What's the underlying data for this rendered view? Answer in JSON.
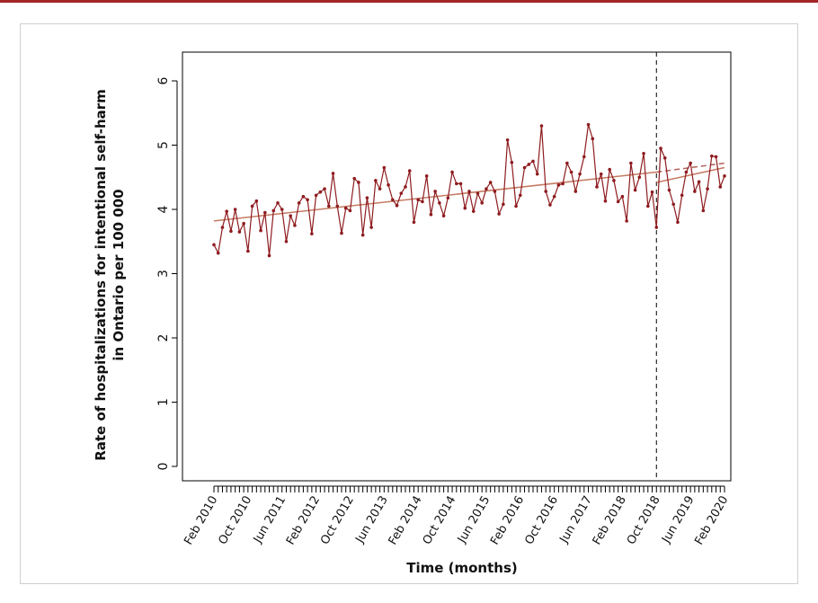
{
  "chart_data": {
    "type": "line",
    "y_label": [
      "Rate of hospitalizations for intentional self-harm",
      "in Ontario per 100 000"
    ],
    "x_label": "Time (months)",
    "categories": [
      "Feb 2010",
      null,
      null,
      null,
      null,
      null,
      null,
      null,
      "Oct 2010",
      null,
      null,
      null,
      null,
      null,
      null,
      null,
      "Jun 2011",
      null,
      null,
      null,
      null,
      null,
      null,
      null,
      "Feb 2012",
      null,
      null,
      null,
      null,
      null,
      null,
      null,
      "Oct 2012",
      null,
      null,
      null,
      null,
      null,
      null,
      null,
      "Jun 2013",
      null,
      null,
      null,
      null,
      null,
      null,
      null,
      "Feb 2014",
      null,
      null,
      null,
      null,
      null,
      null,
      null,
      "Oct 2014",
      null,
      null,
      null,
      null,
      null,
      null,
      null,
      "Jun 2015",
      null,
      null,
      null,
      null,
      null,
      null,
      null,
      "Feb 2016",
      null,
      null,
      null,
      null,
      null,
      null,
      null,
      "Oct 2016",
      null,
      null,
      null,
      null,
      null,
      null,
      null,
      "Jun 2017",
      null,
      null,
      null,
      null,
      null,
      null,
      null,
      "Feb 2018",
      null,
      null,
      null,
      null,
      null,
      null,
      null,
      "Oct 2018",
      null,
      null,
      null,
      null,
      null,
      null,
      null,
      "Jun 2019",
      null,
      null,
      null,
      null,
      null,
      null,
      null,
      "Feb 2020"
    ],
    "values": [
      3.45,
      3.32,
      3.72,
      3.97,
      3.66,
      4.0,
      3.65,
      3.78,
      3.35,
      4.05,
      4.13,
      3.67,
      3.95,
      3.28,
      3.98,
      4.1,
      4.0,
      3.5,
      3.9,
      3.75,
      4.1,
      4.2,
      4.15,
      3.62,
      4.22,
      4.27,
      4.32,
      4.05,
      4.56,
      4.05,
      3.63,
      4.02,
      3.98,
      4.48,
      4.42,
      3.6,
      4.18,
      3.72,
      4.45,
      4.32,
      4.65,
      4.38,
      4.15,
      4.06,
      4.25,
      4.35,
      4.6,
      3.8,
      4.15,
      4.12,
      4.52,
      3.92,
      4.28,
      4.1,
      3.9,
      4.18,
      4.58,
      4.4,
      4.4,
      4.02,
      4.28,
      3.97,
      4.25,
      4.1,
      4.32,
      4.42,
      4.28,
      3.93,
      4.08,
      5.08,
      4.73,
      4.05,
      4.22,
      4.65,
      4.7,
      4.75,
      4.55,
      5.3,
      4.28,
      4.07,
      4.2,
      4.38,
      4.4,
      4.72,
      4.58,
      4.28,
      4.55,
      4.82,
      5.32,
      5.1,
      4.35,
      4.55,
      4.13,
      4.62,
      4.45,
      4.12,
      4.2,
      3.82,
      4.72,
      4.3,
      4.5,
      4.87,
      4.05,
      4.27,
      3.72,
      4.95,
      4.8,
      4.3,
      4.08,
      3.8,
      4.22,
      4.58,
      4.72,
      4.28,
      4.43,
      3.98,
      4.32,
      4.83,
      4.82,
      4.35,
      4.52
    ],
    "color": "#8e1b1f",
    "fits": [
      {
        "start": 0,
        "end": 104,
        "values": [
          3.82,
          4.58
        ],
        "dashed": false,
        "color": "#c47a62"
      },
      {
        "start": 104,
        "end": 120,
        "values": [
          4.42,
          4.65
        ],
        "dashed": false,
        "color": "#c47a62"
      },
      {
        "start": 104,
        "end": 120,
        "values": [
          4.58,
          4.72
        ],
        "dashed": true,
        "color": "#b0605a"
      }
    ],
    "intervention_index": 104,
    "ylim": [
      0,
      6
    ],
    "yticks": [
      0,
      1,
      2,
      3,
      4,
      5,
      6
    ]
  }
}
